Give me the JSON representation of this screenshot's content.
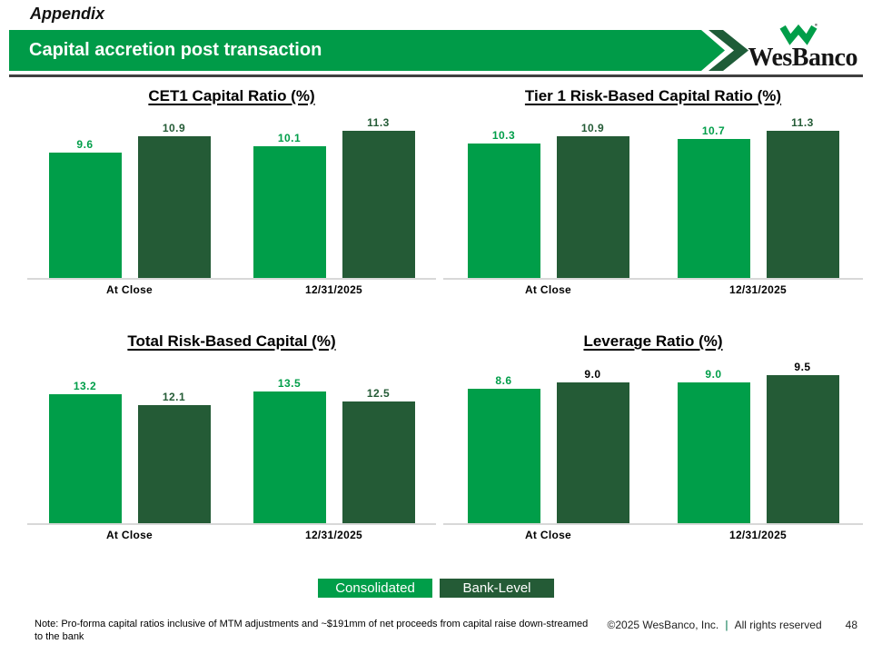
{
  "slide": {
    "section_label": "Appendix",
    "banner_title": "Capital accretion post transaction",
    "logo_text": "WesBanco",
    "logo_mark": "wesbanco-w-mark"
  },
  "colors": {
    "consolidated_green": "#009E49",
    "bank_level_green": "#245B36",
    "banner_green": "#009B48",
    "accent_green": "#1E5C38",
    "divider_green": "#56A388"
  },
  "chart_data": [
    {
      "type": "bar",
      "title": "CET1 Capital Ratio (%)",
      "categories": [
        "At Close",
        "12/31/2025"
      ],
      "ylim": [
        0,
        12
      ],
      "series": [
        {
          "name": "Consolidated",
          "values": [
            9.6,
            10.1
          ],
          "labels": [
            "9.6",
            "10.1"
          ],
          "color": "#009E49",
          "label_color": "#009E49"
        },
        {
          "name": "Bank-Level",
          "values": [
            10.9,
            11.3
          ],
          "labels": [
            "10.9",
            "11.3"
          ],
          "color": "#245B36",
          "label_color": "#245B36"
        }
      ]
    },
    {
      "type": "bar",
      "title": "Tier 1 Risk-Based Capital Ratio (%)",
      "categories": [
        "At Close",
        "12/31/2025"
      ],
      "ylim": [
        0,
        12
      ],
      "series": [
        {
          "name": "Consolidated",
          "values": [
            10.3,
            10.7
          ],
          "labels": [
            "10.3",
            "10.7"
          ],
          "color": "#009E49",
          "label_color": "#009E49"
        },
        {
          "name": "Bank-Level",
          "values": [
            10.9,
            11.3
          ],
          "labels": [
            "10.9",
            "11.3"
          ],
          "color": "#245B36",
          "label_color": "#245B36"
        }
      ]
    },
    {
      "type": "bar",
      "title": "Total Risk-Based Capital (%)",
      "categories": [
        "At Close",
        "12/31/2025"
      ],
      "ylim": [
        0,
        16
      ],
      "series": [
        {
          "name": "Consolidated",
          "values": [
            13.2,
            13.5
          ],
          "labels": [
            "13.2",
            "13.5"
          ],
          "color": "#009E49",
          "label_color": "#009E49"
        },
        {
          "name": "Bank-Level",
          "values": [
            12.1,
            12.5
          ],
          "labels": [
            "12.1",
            "12.5"
          ],
          "color": "#245B36",
          "label_color": "#245B36"
        }
      ]
    },
    {
      "type": "bar",
      "title": "Leverage Ratio (%)",
      "categories": [
        "At Close",
        "12/31/2025"
      ],
      "ylim": [
        0,
        10
      ],
      "series": [
        {
          "name": "Consolidated",
          "values": [
            8.6,
            9.0
          ],
          "labels": [
            "8.6",
            "9.0"
          ],
          "color": "#009E49",
          "label_color": "#009E49"
        },
        {
          "name": "Bank-Level",
          "values": [
            9.0,
            9.5
          ],
          "labels": [
            "9.0",
            "9.5"
          ],
          "color": "#245B36",
          "label_color": "#000000"
        }
      ]
    }
  ],
  "legend": {
    "items": [
      {
        "label": "Consolidated",
        "color": "#009E49"
      },
      {
        "label": "Bank-Level",
        "color": "#245B36"
      }
    ]
  },
  "footnote": {
    "text": "Note: Pro-forma capital ratios inclusive of MTM adjustments and ~$191mm of net proceeds from capital raise down-streamed to the bank"
  },
  "footer": {
    "copyright": "©2025 WesBanco, Inc.",
    "divider": "|",
    "rights": "All rights reserved",
    "page_number": "48"
  }
}
